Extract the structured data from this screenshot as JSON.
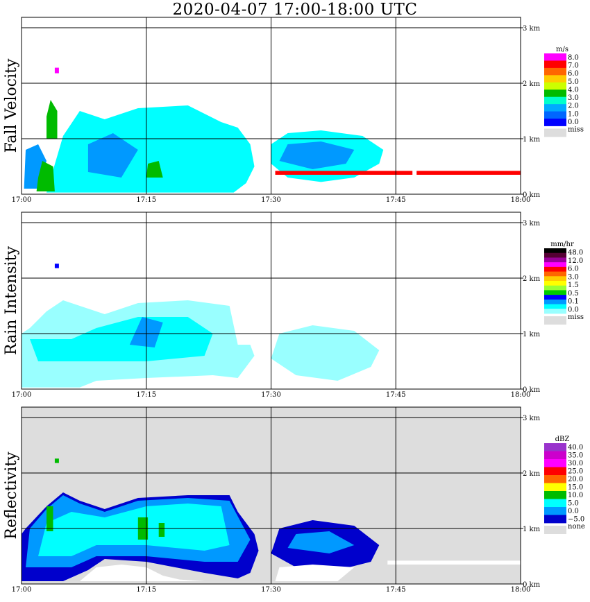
{
  "title": "2020-04-07   17:00-18:00 UTC",
  "chart_data": [
    {
      "type": "heatmap",
      "ylabel": "Fall Velocity",
      "colorbar_unit": "m/s",
      "colorbar_labels": [
        "8.0",
        "7.0",
        "6.0",
        "5.0",
        "4.0",
        "3.0",
        "2.0",
        "1.0",
        "0.0"
      ],
      "colorbar_colors": [
        "#ff00ff",
        "#ff0000",
        "#ff6600",
        "#ffcc00",
        "#ccff00",
        "#00bb00",
        "#00ffcc",
        "#00aaff",
        "#0066ff",
        "#0000ff"
      ],
      "missing_label": "miss",
      "missing_color": "#dddddd",
      "background": "#ffffff",
      "x_ticks": [
        "17:00",
        "17:15",
        "17:30",
        "17:45",
        "18:00"
      ],
      "y_ticks": [
        "0 km",
        "1 km",
        "2 km",
        "3 km"
      ],
      "xlim_minutes": [
        0,
        60
      ],
      "ylim_km": [
        0,
        3
      ],
      "grid": true,
      "shapes": [
        {
          "color": "#00ffff",
          "poly": [
            [
              0,
              0.03
            ],
            [
              3,
              0.03
            ],
            [
              5,
              1.05
            ],
            [
              7,
              1.5
            ],
            [
              10,
              1.35
            ],
            [
              14,
              1.55
            ],
            [
              20,
              1.6
            ],
            [
              24,
              1.3
            ],
            [
              26,
              1.2
            ],
            [
              27.5,
              0.9
            ],
            [
              28,
              0.5
            ],
            [
              27,
              0.2
            ],
            [
              25.5,
              0.03
            ]
          ]
        },
        {
          "color": "#0099ff",
          "poly": [
            [
              0.3,
              0.1
            ],
            [
              2,
              0.1
            ],
            [
              3,
              0.6
            ],
            [
              2,
              0.9
            ],
            [
              0.5,
              0.8
            ]
          ]
        },
        {
          "color": "#0099ff",
          "poly": [
            [
              8,
              0.4
            ],
            [
              12,
              0.3
            ],
            [
              14,
              0.8
            ],
            [
              11,
              1.1
            ],
            [
              8,
              0.9
            ]
          ]
        },
        {
          "color": "#00bb00",
          "poly": [
            [
              1.8,
              0.05
            ],
            [
              4,
              0.05
            ],
            [
              3.8,
              0.5
            ],
            [
              2.5,
              0.6
            ],
            [
              2,
              0.3
            ]
          ]
        },
        {
          "color": "#00bb00",
          "poly": [
            [
              3,
              1.0
            ],
            [
              4.3,
              1.0
            ],
            [
              4.3,
              1.5
            ],
            [
              3.5,
              1.7
            ],
            [
              3,
              1.4
            ]
          ]
        },
        {
          "color": "#00bb00",
          "poly": [
            [
              15,
              0.3
            ],
            [
              17,
              0.3
            ],
            [
              16.5,
              0.6
            ],
            [
              15.2,
              0.55
            ]
          ]
        },
        {
          "color": "#00ffff",
          "poly": [
            [
              30,
              0.55
            ],
            [
              32,
              0.3
            ],
            [
              36,
              0.22
            ],
            [
              40,
              0.3
            ],
            [
              43,
              0.55
            ],
            [
              43.5,
              0.8
            ],
            [
              41,
              1.05
            ],
            [
              36,
              1.15
            ],
            [
              32,
              1.1
            ],
            [
              30,
              0.9
            ]
          ]
        },
        {
          "color": "#0099ff",
          "poly": [
            [
              31,
              0.6
            ],
            [
              35,
              0.45
            ],
            [
              39,
              0.55
            ],
            [
              40,
              0.8
            ],
            [
              36,
              0.95
            ],
            [
              32,
              0.9
            ]
          ]
        },
        {
          "color": "#ff00ff",
          "poly": [
            [
              4,
              2.18
            ],
            [
              4.5,
              2.18
            ],
            [
              4.5,
              2.28
            ],
            [
              4,
              2.28
            ]
          ]
        },
        {
          "color": "#ff0000",
          "poly": [
            [
              30.5,
              0.35
            ],
            [
              47,
              0.35
            ],
            [
              47,
              0.42
            ],
            [
              30.5,
              0.42
            ]
          ]
        },
        {
          "color": "#ff0000",
          "poly": [
            [
              47.5,
              0.35
            ],
            [
              60,
              0.35
            ],
            [
              60,
              0.42
            ],
            [
              47.5,
              0.42
            ]
          ]
        }
      ]
    },
    {
      "type": "heatmap",
      "ylabel": "Rain Intensity",
      "colorbar_unit": "mm/hr",
      "colorbar_labels": [
        "48.0",
        "12.0",
        "6.0",
        "3.0",
        "1.5",
        "0.5",
        "0.1",
        "0.0"
      ],
      "colorbar_colors": [
        "#000000",
        "#550033",
        "#990099",
        "#ff00ff",
        "#ff0000",
        "#ff6600",
        "#ffcc00",
        "#ffff00",
        "#99ff33",
        "#00cc00",
        "#0000ff",
        "#0099ff",
        "#00ffff",
        "#99ffff"
      ],
      "missing_label": "miss",
      "missing_color": "#dddddd",
      "background": "#ffffff",
      "x_ticks": [
        "17:00",
        "17:15",
        "17:30",
        "17:45",
        "18:00"
      ],
      "y_ticks": [
        "0 km",
        "1 km",
        "2 km",
        "3 km"
      ],
      "xlim_minutes": [
        0,
        60
      ],
      "ylim_km": [
        0,
        3
      ],
      "grid": true,
      "shapes": [
        {
          "color": "#99ffff",
          "poly": [
            [
              0,
              0.03
            ],
            [
              7,
              0.03
            ],
            [
              9,
              0.15
            ],
            [
              15,
              0.2
            ],
            [
              23,
              0.25
            ],
            [
              26,
              0.2
            ],
            [
              28,
              0.6
            ],
            [
              27.5,
              0.8
            ],
            [
              26,
              0.8
            ],
            [
              25,
              1.5
            ],
            [
              20,
              1.6
            ],
            [
              14,
              1.55
            ],
            [
              10,
              1.35
            ],
            [
              7,
              1.5
            ],
            [
              5,
              1.6
            ],
            [
              3,
              1.4
            ],
            [
              1,
              1.1
            ],
            [
              0,
              1.0
            ]
          ]
        },
        {
          "color": "#00ffff",
          "poly": [
            [
              1,
              0.9
            ],
            [
              6,
              0.9
            ],
            [
              9,
              1.1
            ],
            [
              14,
              1.3
            ],
            [
              20,
              1.3
            ],
            [
              23,
              1.0
            ],
            [
              22,
              0.6
            ],
            [
              15,
              0.5
            ],
            [
              8,
              0.5
            ],
            [
              2,
              0.5
            ]
          ]
        },
        {
          "color": "#0099ff",
          "poly": [
            [
              13,
              0.8
            ],
            [
              16,
              0.75
            ],
            [
              17,
              1.2
            ],
            [
              14.5,
              1.3
            ]
          ]
        },
        {
          "color": "#99ffff",
          "poly": [
            [
              30,
              0.55
            ],
            [
              33,
              0.25
            ],
            [
              38,
              0.15
            ],
            [
              42,
              0.4
            ],
            [
              43,
              0.7
            ],
            [
              40,
              1.05
            ],
            [
              35,
              1.15
            ],
            [
              31,
              1.0
            ]
          ]
        },
        {
          "color": "#0000ff",
          "poly": [
            [
              4,
              2.18
            ],
            [
              4.5,
              2.18
            ],
            [
              4.5,
              2.26
            ],
            [
              4,
              2.26
            ]
          ]
        }
      ]
    },
    {
      "type": "heatmap",
      "ylabel": "Reflectivity",
      "colorbar_unit": "dBZ",
      "colorbar_labels": [
        "40.0",
        "35.0",
        "30.0",
        "25.0",
        "20.0",
        "15.0",
        "10.0",
        "5.0",
        "0.0",
        "−5.0"
      ],
      "colorbar_colors": [
        "#9933cc",
        "#cc00cc",
        "#ff00ff",
        "#ff0000",
        "#ff6600",
        "#ffff00",
        "#00bb00",
        "#00ffff",
        "#0099ff",
        "#0000cc"
      ],
      "missing_label": "none",
      "missing_color": "#dddddd",
      "background": "#dddddd",
      "x_ticks": [
        "17:00",
        "17:15",
        "17:30",
        "17:45",
        "18:00"
      ],
      "y_ticks": [
        "0 km",
        "1 km",
        "2 km",
        "3 km"
      ],
      "xlim_minutes": [
        0,
        60
      ],
      "ylim_km": [
        0,
        3
      ],
      "grid": true,
      "shapes": [
        {
          "color": "#0000cc",
          "poly": [
            [
              0,
              0.05
            ],
            [
              5,
              0.05
            ],
            [
              8,
              0.25
            ],
            [
              10,
              0.45
            ],
            [
              15,
              0.4
            ],
            [
              22,
              0.2
            ],
            [
              26,
              0.1
            ],
            [
              27.5,
              0.2
            ],
            [
              28.5,
              0.6
            ],
            [
              28,
              0.9
            ],
            [
              26,
              1.3
            ],
            [
              25,
              1.6
            ],
            [
              20,
              1.6
            ],
            [
              14,
              1.55
            ],
            [
              10,
              1.35
            ],
            [
              7,
              1.5
            ],
            [
              5,
              1.65
            ],
            [
              3,
              1.4
            ],
            [
              0.5,
              1.0
            ],
            [
              0,
              0.9
            ]
          ]
        },
        {
          "color": "#0099ff",
          "poly": [
            [
              0.5,
              0.3
            ],
            [
              3,
              0.3
            ],
            [
              6,
              0.3
            ],
            [
              9,
              0.5
            ],
            [
              15,
              0.5
            ],
            [
              22,
              0.4
            ],
            [
              26,
              0.4
            ],
            [
              27.5,
              0.8
            ],
            [
              25,
              1.5
            ],
            [
              20,
              1.55
            ],
            [
              14,
              1.5
            ],
            [
              10,
              1.3
            ],
            [
              7,
              1.45
            ],
            [
              5,
              1.6
            ],
            [
              3,
              1.35
            ],
            [
              1,
              1.0
            ]
          ]
        },
        {
          "color": "#00ffff",
          "poly": [
            [
              2,
              0.5
            ],
            [
              6,
              0.5
            ],
            [
              9,
              0.7
            ],
            [
              15,
              0.7
            ],
            [
              22,
              0.6
            ],
            [
              25,
              0.7
            ],
            [
              24,
              1.4
            ],
            [
              20,
              1.45
            ],
            [
              15,
              1.4
            ],
            [
              10,
              1.2
            ],
            [
              6,
              1.3
            ],
            [
              3,
              1.1
            ]
          ]
        },
        {
          "color": "#00bb00",
          "poly": [
            [
              14,
              0.8
            ],
            [
              15.2,
              0.8
            ],
            [
              15.2,
              1.2
            ],
            [
              14,
              1.2
            ]
          ]
        },
        {
          "color": "#00bb00",
          "poly": [
            [
              16.5,
              0.85
            ],
            [
              17.2,
              0.85
            ],
            [
              17.2,
              1.1
            ],
            [
              16.5,
              1.1
            ]
          ]
        },
        {
          "color": "#00bb00",
          "poly": [
            [
              3,
              0.95
            ],
            [
              3.8,
              0.95
            ],
            [
              3.8,
              1.4
            ],
            [
              3,
              1.4
            ]
          ]
        },
        {
          "color": "#ffffff",
          "poly": [
            [
              7,
              0.05
            ],
            [
              9,
              0.3
            ],
            [
              12,
              0.35
            ],
            [
              15,
              0.3
            ],
            [
              17,
              0.15
            ],
            [
              19,
              0.08
            ],
            [
              22,
              0.05
            ]
          ]
        },
        {
          "color": "#0000cc",
          "poly": [
            [
              30,
              0.55
            ],
            [
              33,
              0.3
            ],
            [
              38,
              0.25
            ],
            [
              42,
              0.4
            ],
            [
              43,
              0.7
            ],
            [
              40,
              1.05
            ],
            [
              35,
              1.15
            ],
            [
              31,
              1.0
            ]
          ]
        },
        {
          "color": "#0099ff",
          "poly": [
            [
              32,
              0.65
            ],
            [
              37,
              0.55
            ],
            [
              40,
              0.7
            ],
            [
              37,
              0.95
            ],
            [
              33,
              0.9
            ]
          ]
        },
        {
          "color": "#ffffff",
          "poly": [
            [
              30.5,
              0.05
            ],
            [
              38,
              0.05
            ],
            [
              40,
              0.3
            ],
            [
              35,
              0.35
            ],
            [
              31,
              0.3
            ]
          ]
        },
        {
          "color": "#ffffff",
          "poly": [
            [
              44,
              0.35
            ],
            [
              60,
              0.35
            ],
            [
              60,
              0.42
            ],
            [
              44,
              0.42
            ]
          ]
        },
        {
          "color": "#00bb00",
          "poly": [
            [
              4,
              2.18
            ],
            [
              4.5,
              2.18
            ],
            [
              4.5,
              2.26
            ],
            [
              4,
              2.26
            ]
          ]
        }
      ]
    }
  ]
}
